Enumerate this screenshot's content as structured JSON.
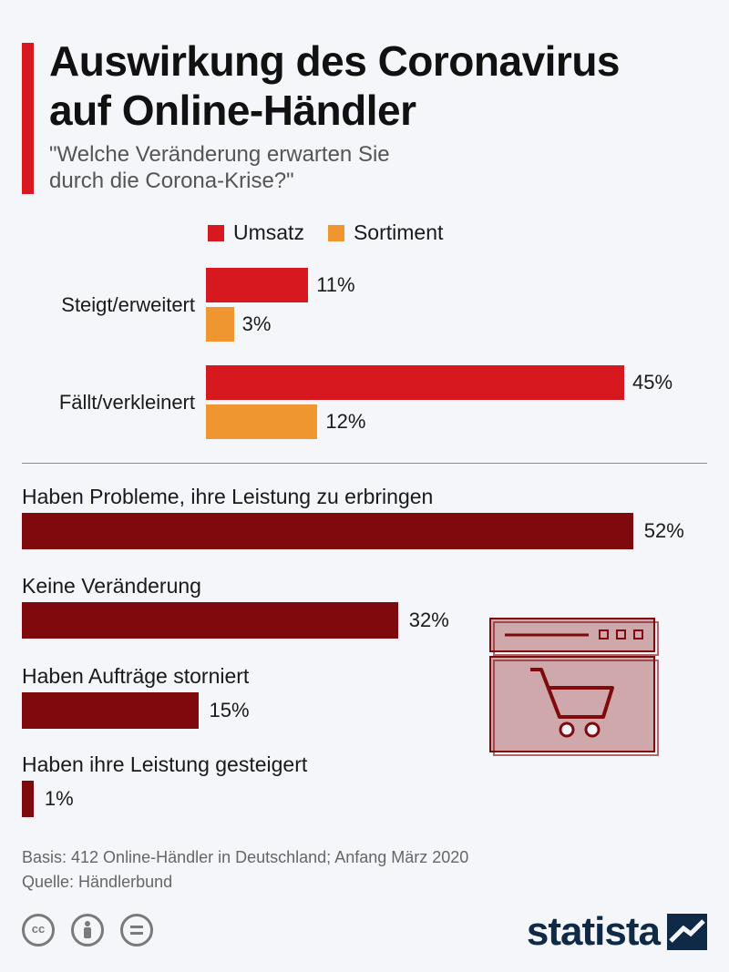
{
  "title_lines": [
    "Auswirkung des Coronavirus",
    "auf Online-Händler"
  ],
  "subtitle_lines": [
    "\"Welche Veränderung erwarten Sie",
    "durch die Corona-Krise?\""
  ],
  "colors": {
    "umsatz": "#d7181f",
    "sortiment": "#ef9630",
    "dark": "#7e0a0e",
    "accent": "#d7181f"
  },
  "chart_data": [
    {
      "type": "bar",
      "orientation": "horizontal",
      "categories": [
        "Steigt/erweitert",
        "Fällt/verkleinert"
      ],
      "series": [
        {
          "name": "Umsatz",
          "values": [
            11,
            45
          ],
          "labels": [
            "11%",
            "45%"
          ]
        },
        {
          "name": "Sortiment",
          "values": [
            3,
            12
          ],
          "labels": [
            "3%",
            "12%"
          ]
        }
      ],
      "legend": "top"
    },
    {
      "type": "bar",
      "orientation": "horizontal",
      "categories": [
        "Haben Probleme, ihre Leistung zu erbringen",
        "Keine Veränderung",
        "Haben Aufträge storniert",
        "Haben ihre Leistung gesteigert"
      ],
      "values": [
        52,
        32,
        15,
        1
      ],
      "labels": [
        "52%",
        "32%",
        "15%",
        "1%"
      ]
    }
  ],
  "footer": {
    "basis": "Basis: 412 Online-Händler in Deutschland; Anfang März 2020",
    "source": "Quelle: Händlerbund"
  },
  "license_icons": [
    "cc-icon",
    "person-icon",
    "equals-icon"
  ],
  "logo_text": "statista"
}
